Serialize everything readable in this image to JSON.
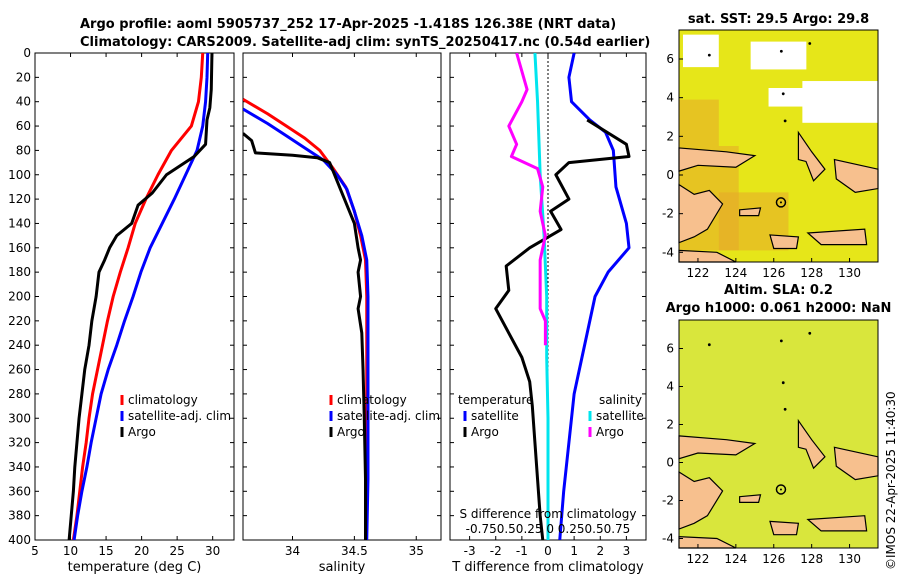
{
  "title_line1": "Argo profile: aoml 5905737_252 17-Apr-2025 -1.418S 126.38E (NRT data)",
  "title_line2": "Climatology: CARS2009. Satellite-adj clim: synTS_20250417.nc (0.54d earlier)",
  "timestamp": "©IMOS 22-Apr-2025 11:40:30",
  "colors": {
    "climatology": "#ff0000",
    "satellite": "#0000ff",
    "argo": "#000000",
    "sal_satellite": "#00e5ee",
    "sal_argo": "#ff00ff",
    "land": "#f7c08e",
    "sst_field": "#e6e619",
    "sla_field": "#d9e63c"
  },
  "chart_data": [
    {
      "id": "temperature-profile",
      "type": "line",
      "xlabel": "temperature (deg C)",
      "xlim": [
        5,
        33
      ],
      "ylim": [
        400,
        0
      ],
      "xticks": [
        5,
        10,
        15,
        20,
        25,
        30
      ],
      "yticks": [
        0,
        20,
        40,
        60,
        80,
        100,
        120,
        140,
        160,
        180,
        200,
        220,
        240,
        260,
        280,
        300,
        320,
        340,
        360,
        380,
        400
      ],
      "legend": [
        "climatology",
        "satellite-adj. clim",
        "Argo"
      ],
      "series": [
        {
          "name": "climatology",
          "color": "#ff0000",
          "points": [
            [
              28.6,
              0
            ],
            [
              28.4,
              20
            ],
            [
              28.0,
              40
            ],
            [
              27.0,
              60
            ],
            [
              24.2,
              80
            ],
            [
              22.3,
              100
            ],
            [
              20.6,
              120
            ],
            [
              19.1,
              140
            ],
            [
              18.1,
              160
            ],
            [
              17.0,
              180
            ],
            [
              16.0,
              200
            ],
            [
              15.2,
              220
            ],
            [
              14.5,
              240
            ],
            [
              13.8,
              260
            ],
            [
              13.1,
              280
            ],
            [
              12.6,
              300
            ],
            [
              12.2,
              320
            ],
            [
              11.7,
              340
            ],
            [
              11.3,
              360
            ],
            [
              10.9,
              380
            ],
            [
              10.4,
              400
            ]
          ]
        },
        {
          "name": "satellite",
          "color": "#0000ff",
          "points": [
            [
              29.3,
              0
            ],
            [
              29.2,
              20
            ],
            [
              29.0,
              40
            ],
            [
              28.6,
              60
            ],
            [
              27.8,
              80
            ],
            [
              26.2,
              100
            ],
            [
              24.6,
              120
            ],
            [
              22.9,
              140
            ],
            [
              21.2,
              160
            ],
            [
              19.9,
              180
            ],
            [
              18.8,
              200
            ],
            [
              17.6,
              220
            ],
            [
              16.5,
              240
            ],
            [
              15.3,
              260
            ],
            [
              14.3,
              280
            ],
            [
              13.6,
              300
            ],
            [
              12.9,
              320
            ],
            [
              12.3,
              340
            ],
            [
              11.6,
              360
            ],
            [
              11.0,
              380
            ],
            [
              10.5,
              400
            ]
          ]
        },
        {
          "name": "argo",
          "color": "#000000",
          "points": [
            [
              29.9,
              0
            ],
            [
              29.8,
              30
            ],
            [
              29.6,
              45
            ],
            [
              29.2,
              55
            ],
            [
              29.0,
              75
            ],
            [
              27.4,
              85
            ],
            [
              23.5,
              100
            ],
            [
              21.5,
              115
            ],
            [
              19.5,
              125
            ],
            [
              18.6,
              140
            ],
            [
              16.5,
              150
            ],
            [
              15.5,
              160
            ],
            [
              14.8,
              170
            ],
            [
              14.0,
              180
            ],
            [
              13.6,
              200
            ],
            [
              13.0,
              220
            ],
            [
              12.6,
              240
            ],
            [
              12.0,
              260
            ],
            [
              11.6,
              280
            ],
            [
              11.2,
              300
            ],
            [
              10.9,
              320
            ],
            [
              10.6,
              340
            ],
            [
              10.4,
              360
            ],
            [
              10.1,
              380
            ],
            [
              9.8,
              400
            ]
          ]
        }
      ]
    },
    {
      "id": "salinity-profile",
      "type": "line",
      "xlabel": "salinity",
      "xlim": [
        33.6,
        35.2
      ],
      "ylim": [
        400,
        0
      ],
      "xticks": [
        34,
        34.5,
        35
      ],
      "legend": [
        "climatology",
        "satellite-adj. clim",
        "Argo"
      ],
      "series": [
        {
          "name": "climatology",
          "color": "#ff0000",
          "points": [
            [
              33.6,
              38
            ],
            [
              33.8,
              50
            ],
            [
              33.95,
              60
            ],
            [
              34.1,
              70
            ],
            [
              34.22,
              80
            ],
            [
              34.33,
              95
            ],
            [
              34.43,
              110
            ],
            [
              34.5,
              130
            ],
            [
              34.55,
              150
            ],
            [
              34.59,
              170
            ],
            [
              34.6,
              200
            ],
            [
              34.6,
              250
            ],
            [
              34.6,
              300
            ],
            [
              34.6,
              350
            ],
            [
              34.59,
              400
            ]
          ]
        },
        {
          "name": "satellite",
          "color": "#0000ff",
          "points": [
            [
              33.6,
              46
            ],
            [
              33.8,
              58
            ],
            [
              33.95,
              68
            ],
            [
              34.1,
              78
            ],
            [
              34.25,
              88
            ],
            [
              34.36,
              100
            ],
            [
              34.44,
              112
            ],
            [
              34.5,
              130
            ],
            [
              34.56,
              150
            ],
            [
              34.6,
              170
            ],
            [
              34.61,
              200
            ],
            [
              34.61,
              250
            ],
            [
              34.61,
              300
            ],
            [
              34.61,
              350
            ],
            [
              34.6,
              400
            ]
          ]
        },
        {
          "name": "argo",
          "color": "#000000",
          "points": [
            [
              33.6,
              66
            ],
            [
              33.67,
              72
            ],
            [
              33.7,
              82
            ],
            [
              34.0,
              84
            ],
            [
              34.2,
              86
            ],
            [
              34.3,
              90
            ],
            [
              34.4,
              115
            ],
            [
              34.5,
              140
            ],
            [
              34.53,
              160
            ],
            [
              34.55,
              170
            ],
            [
              34.53,
              180
            ],
            [
              34.55,
              200
            ],
            [
              34.53,
              210
            ],
            [
              34.56,
              230
            ],
            [
              34.57,
              260
            ],
            [
              34.58,
              300
            ],
            [
              34.59,
              350
            ],
            [
              34.59,
              400
            ]
          ]
        }
      ]
    },
    {
      "id": "difference-profile",
      "type": "line",
      "xlabel": "T difference from climatology",
      "top_label": "S difference from climatology",
      "xlim": [
        -3.75,
        3.75
      ],
      "ylim": [
        400,
        0
      ],
      "xticks": [
        -3,
        -2,
        -1,
        0,
        1,
        2,
        3
      ],
      "top_ticks_text": "-0.750.50.25 0 0.250.50.75",
      "legend_temperature_title": "temperature",
      "legend_salinity_title": "salinity",
      "legend_temperature": [
        "satellite",
        "Argo"
      ],
      "legend_salinity": [
        "satellite",
        "Argo"
      ],
      "series": [
        {
          "name": "T satellite",
          "color": "#0000ff",
          "points": [
            [
              1.0,
              0
            ],
            [
              0.8,
              20
            ],
            [
              0.9,
              40
            ],
            [
              1.6,
              55
            ],
            [
              2.2,
              65
            ],
            [
              2.5,
              80
            ],
            [
              2.6,
              110
            ],
            [
              3.0,
              140
            ],
            [
              3.1,
              160
            ],
            [
              2.3,
              180
            ],
            [
              1.8,
              200
            ],
            [
              1.5,
              230
            ],
            [
              1.3,
              250
            ],
            [
              1.0,
              280
            ],
            [
              0.8,
              320
            ],
            [
              0.6,
              360
            ],
            [
              0.45,
              400
            ]
          ]
        },
        {
          "name": "T argo",
          "color": "#000000",
          "points": [
            [
              1.5,
              55
            ],
            [
              3.0,
              75
            ],
            [
              3.1,
              85
            ],
            [
              0.8,
              90
            ],
            [
              0.3,
              100
            ],
            [
              0.8,
              120
            ],
            [
              0.1,
              130
            ],
            [
              0.5,
              145
            ],
            [
              -0.7,
              160
            ],
            [
              -1.6,
              175
            ],
            [
              -1.5,
              195
            ],
            [
              -2.0,
              210
            ],
            [
              -1.5,
              230
            ],
            [
              -1.0,
              250
            ],
            [
              -0.7,
              270
            ],
            [
              -0.6,
              290
            ],
            [
              -0.5,
              320
            ],
            [
              -0.4,
              350
            ],
            [
              -0.3,
              380
            ],
            [
              -0.2,
              400
            ]
          ]
        },
        {
          "name": "S satellite",
          "color": "#00e5ee",
          "points": [
            [
              -0.5,
              0
            ],
            [
              -0.4,
              40
            ],
            [
              -0.3,
              100
            ],
            [
              -0.15,
              150
            ],
            [
              -0.05,
              200
            ],
            [
              -0.05,
              250
            ],
            [
              0,
              300
            ],
            [
              0,
              400
            ]
          ]
        },
        {
          "name": "S argo",
          "color": "#ff00ff",
          "points": [
            [
              -1.2,
              0
            ],
            [
              -0.8,
              30
            ],
            [
              -1.0,
              40
            ],
            [
              -1.5,
              60
            ],
            [
              -1.2,
              75
            ],
            [
              -1.4,
              85
            ],
            [
              -0.4,
              95
            ],
            [
              -0.2,
              110
            ],
            [
              -0.3,
              130
            ],
            [
              -0.1,
              150
            ],
            [
              -0.2,
              160
            ],
            [
              -0.3,
              170
            ],
            [
              -0.3,
              190
            ],
            [
              -0.3,
              210
            ],
            [
              -0.1,
              220
            ],
            [
              -0.1,
              240
            ]
          ]
        }
      ]
    },
    {
      "id": "sst-map",
      "type": "heatmap",
      "title": "sat. SST: 29.5 Argo: 29.8",
      "xticks": [
        122,
        124,
        126,
        128,
        130
      ],
      "yticks": [
        -4,
        -2,
        0,
        2,
        4,
        6
      ],
      "xlim": [
        121,
        131.5
      ],
      "ylim": [
        -4.5,
        7.5
      ],
      "marker": [
        126.38,
        -1.418
      ]
    },
    {
      "id": "sla-map",
      "type": "heatmap",
      "title_line1": "Altim. SLA: 0.2",
      "title_line2": "Argo h1000: 0.061 h2000: NaN",
      "xticks": [
        122,
        124,
        126,
        128,
        130
      ],
      "yticks": [
        -4,
        -2,
        0,
        2,
        4,
        6
      ],
      "xlim": [
        121,
        131.5
      ],
      "ylim": [
        -4.5,
        7.5
      ],
      "marker": [
        126.38,
        -1.418
      ]
    }
  ]
}
